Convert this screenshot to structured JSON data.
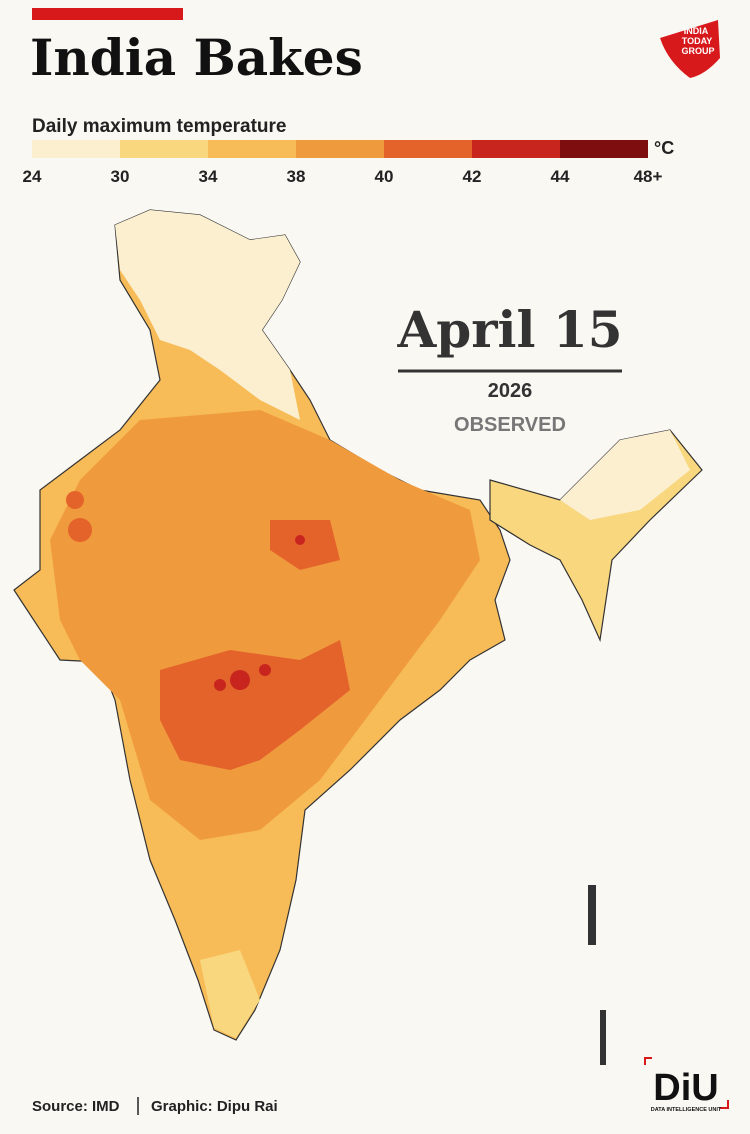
{
  "header": {
    "title": "India Bakes"
  },
  "legend": {
    "title": "Daily maximum temperature",
    "unit": "°C",
    "ticks": [
      24,
      30,
      34,
      38,
      40,
      42,
      44,
      {
        "value": 48,
        "label": "48+"
      }
    ],
    "colors": [
      "#fbefcf",
      "#f9d77e",
      "#f7bc57",
      "#f09a3e",
      "#e4632a",
      "#c8251f",
      "#7d0d0f"
    ]
  },
  "date": {
    "day": "April 15",
    "year": "2026",
    "status": "OBSERVED"
  },
  "footer": {
    "source": "Source: IMD",
    "credit": "Graphic: Dipu Rai"
  },
  "logos": {
    "publisher": [
      "INDIA",
      "TODAY",
      "GROUP"
    ],
    "unit": "DiU",
    "unit_full": "DATA INTELLIGENCE UNIT"
  }
}
